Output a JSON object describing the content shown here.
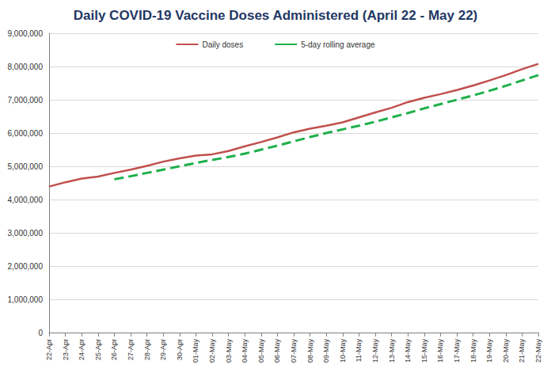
{
  "chart_data": {
    "type": "line",
    "title": "Daily COVID-19 Vaccine Doses Administered (April 22 - May 22)",
    "categories": [
      "22-Apr",
      "23-Apr",
      "24-Apr",
      "25-Apr",
      "26-Apr",
      "27-Apr",
      "28-Apr",
      "29-Apr",
      "30-Apr",
      "01-May",
      "02-May",
      "03-May",
      "04-May",
      "05-May",
      "06-May",
      "07-May",
      "08-May",
      "09-May",
      "10-May",
      "11-May",
      "12-May",
      "13-May",
      "14-May",
      "15-May",
      "16-May",
      "17-May",
      "18-May",
      "19-May",
      "20-May",
      "21-May",
      "22-May"
    ],
    "series": [
      {
        "name": "Daily doses",
        "color": "#c0504d",
        "line_style": "solid",
        "marker": "none",
        "values": [
          4390000,
          4520000,
          4630000,
          4690000,
          4800000,
          4900000,
          5010000,
          5140000,
          5240000,
          5320000,
          5360000,
          5460000,
          5600000,
          5730000,
          5870000,
          6020000,
          6130000,
          6220000,
          6320000,
          6470000,
          6620000,
          6760000,
          6930000,
          7060000,
          7170000,
          7290000,
          7430000,
          7580000,
          7740000,
          7920000,
          8080000
        ]
      },
      {
        "name": "5-day rolling average",
        "color": "#1fb04b",
        "line_style": "dashed",
        "marker": "none",
        "values": [
          null,
          null,
          null,
          null,
          4610000,
          4700000,
          4800000,
          4900000,
          5000000,
          5100000,
          5190000,
          5280000,
          5380000,
          5500000,
          5620000,
          5750000,
          5880000,
          6000000,
          6110000,
          6220000,
          6340000,
          6470000,
          6600000,
          6740000,
          6870000,
          7000000,
          7130000,
          7270000,
          7420000,
          7580000,
          7740000
        ]
      }
    ],
    "ylim": [
      0,
      9000000
    ],
    "yticks": [
      0,
      {
        "value": 1000000,
        "label": "1,000,000"
      },
      {
        "value": 2000000,
        "label": "2,000,000"
      },
      {
        "value": 3000000,
        "label": "3,000,000"
      },
      {
        "value": 4000000,
        "label": "4,000,000"
      },
      {
        "value": 5000000,
        "label": "5,000,000"
      },
      {
        "value": 6000000,
        "label": "6,000,000"
      },
      {
        "value": 7000000,
        "label": "7,000,000"
      },
      {
        "value": 8000000,
        "label": "8,000,000"
      },
      {
        "value": 9000000,
        "label": "9,000,000"
      }
    ],
    "grid": true,
    "legend": "top"
  }
}
